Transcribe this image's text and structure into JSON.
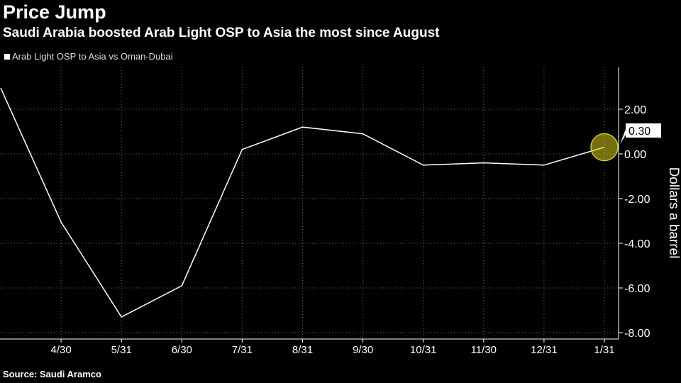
{
  "header": {
    "title": "Price Jump",
    "subtitle": "Saudi Arabia boosted Arab Light OSP to Asia the most since August"
  },
  "footer": {
    "source": "Source: Saudi Aramco"
  },
  "chart_data": {
    "type": "line",
    "title": "Price Jump",
    "subtitle": "Saudi Arabia boosted Arab Light OSP to Asia the most since August",
    "xlabel": "",
    "ylabel": "Dollars a barrel",
    "ylim": [
      -8.5,
      3.9
    ],
    "grid": true,
    "legend_position": "top-left",
    "x_ticks": [
      "4/30",
      "5/31",
      "6/30",
      "7/31",
      "8/31",
      "9/30",
      "10/31",
      "11/30",
      "12/31",
      "1/31"
    ],
    "y_ticks": [
      2,
      0,
      -2,
      -4,
      -6,
      -8
    ],
    "y_tick_labels": [
      "2.00",
      "0.00",
      "-2.00",
      "-4.00",
      "-6.00",
      "-8.00"
    ],
    "series": [
      {
        "name": "Arab Light OSP to Asia vs Oman-Dubai",
        "color": "#ffffff",
        "x": [
          "3/31",
          "4/30",
          "5/31",
          "6/30",
          "7/31",
          "8/31",
          "9/30",
          "10/31",
          "11/30",
          "12/31",
          "1/31"
        ],
        "values": [
          2.95,
          -3.05,
          -7.3,
          -5.9,
          0.2,
          1.2,
          0.9,
          -0.5,
          -0.4,
          -0.5,
          0.3
        ]
      }
    ],
    "annotation": {
      "label": "0.30",
      "highlight_color": "#d4cc1f"
    }
  }
}
